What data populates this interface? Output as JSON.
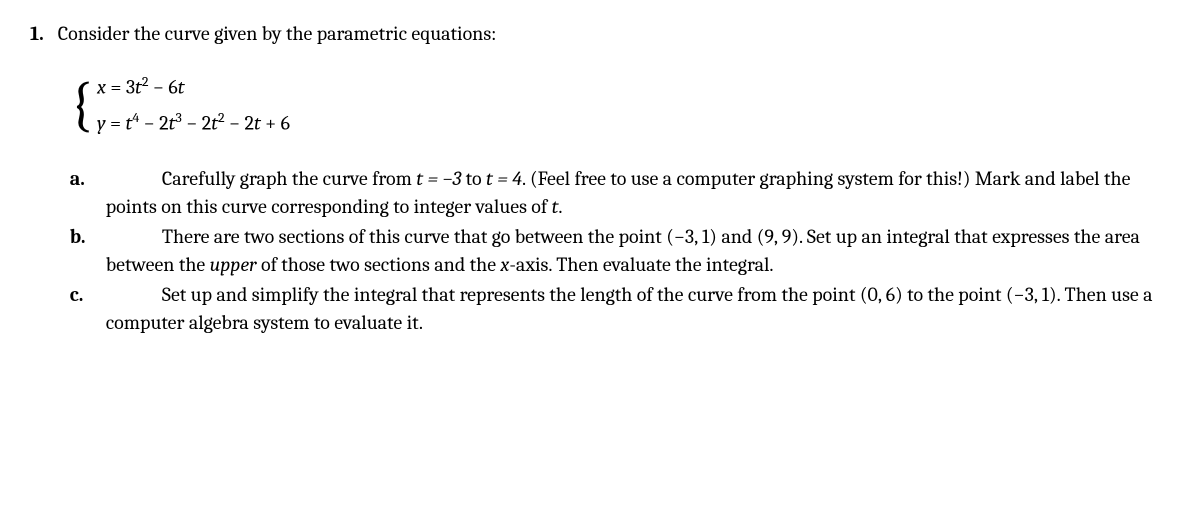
{
  "problem": {
    "number": "1.",
    "intro": "Consider the curve given by the parametric equations:",
    "equations": {
      "x_parts": [
        "x",
        " = ",
        "3",
        "t",
        "2",
        " − ",
        "6",
        "t"
      ],
      "y_parts": [
        "y",
        " = ",
        "t",
        "4",
        " − ",
        "2",
        "t",
        "3",
        " − ",
        "2",
        "t",
        "2",
        " − ",
        "2",
        "t",
        " + ",
        "6"
      ]
    },
    "subparts": {
      "a": {
        "label": "a.",
        "text_before": "Carefully graph the curve from ",
        "math1": "t = −3",
        "text_mid1": " to ",
        "math2": "t = 4",
        "text_mid2": ". (Feel free to use a computer graphing system for this!) Mark and label the points on this curve corresponding to integer values of ",
        "math3": "t",
        "text_after": "."
      },
      "b": {
        "label": "b.",
        "text_before": "There are two sections of this curve that go between the point ",
        "math1": "(−3, 1)",
        "text_mid1": " and ",
        "math2": "(9, 9)",
        "text_mid2": ". Set up an integral that expresses the area between the ",
        "emph": "upper",
        "text_mid3": " of those two sections and the ",
        "math3": "x",
        "text_after": "-axis. Then evaluate the integral."
      },
      "c": {
        "label": "c.",
        "text_before": "Set up and simplify the integral that represents the length of the curve from the point ",
        "math1": "(0, 6)",
        "text_mid1": " to the point ",
        "math2": "(−3, 1)",
        "text_after": ". Then use a computer algebra system to evaluate it."
      }
    }
  },
  "colors": {
    "background": "#ffffff",
    "text": "#000000"
  }
}
